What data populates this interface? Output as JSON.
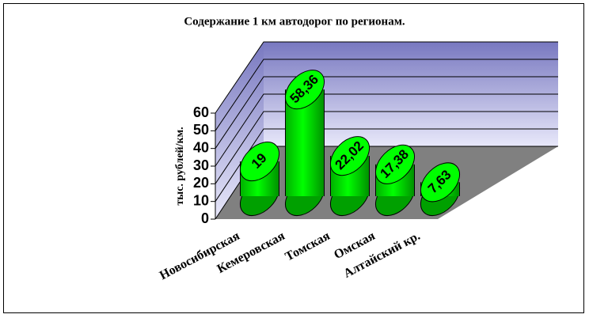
{
  "chart_data": {
    "type": "bar3d",
    "title": "Содержание 1 км автодорог по регионам.",
    "y_label": "тыс. рублей/км.",
    "categories": [
      "Новосибирская",
      "Кемеровская",
      "Томская",
      "Омская",
      "Алтайский кр."
    ],
    "values": [
      19,
      58.36,
      22.02,
      17.38,
      7.63
    ],
    "value_labels": [
      "19",
      "58,36",
      "22,02",
      "17,38",
      "7,63"
    ],
    "color": "#00ff00",
    "ylim": [
      0,
      60
    ],
    "yticks": [
      0,
      10,
      20,
      30,
      40,
      50,
      60
    ],
    "grid": true
  }
}
